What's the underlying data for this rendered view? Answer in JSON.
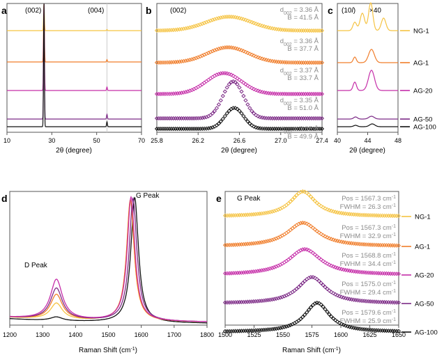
{
  "colors": {
    "NG-1": "#f5c342",
    "AG-1": "#f07d2a",
    "AG-20": "#c52da8",
    "AG-50": "#7c2a86",
    "AG-100": "#111111",
    "annotation": "#8a8a8a",
    "axis": "#333333"
  },
  "samples": [
    "NG-1",
    "AG-1",
    "AG-20",
    "AG-50",
    "AG-100"
  ],
  "chart_data": [
    {
      "panel": "a",
      "type": "line",
      "xlabel": "2θ (degree)",
      "xlim": [
        10,
        70
      ],
      "xticks": [
        "10",
        "30",
        "50",
        "70"
      ],
      "annotations": [
        "(002)",
        "(004)"
      ],
      "series": [
        {
          "name": "NG-1",
          "peaks": [
            {
              "x": 26.5,
              "rel_height": 1.0
            },
            {
              "x": 54.6,
              "rel_height": 0.04
            }
          ]
        },
        {
          "name": "AG-1",
          "peaks": [
            {
              "x": 26.5,
              "rel_height": 1.0
            },
            {
              "x": 54.6,
              "rel_height": 0.04
            }
          ]
        },
        {
          "name": "AG-20",
          "peaks": [
            {
              "x": 26.5,
              "rel_height": 1.0
            },
            {
              "x": 54.6,
              "rel_height": 0.04
            }
          ]
        },
        {
          "name": "AG-50",
          "peaks": [
            {
              "x": 26.5,
              "rel_height": 1.0
            },
            {
              "x": 54.6,
              "rel_height": 0.04
            }
          ]
        },
        {
          "name": "AG-100",
          "peaks": [
            {
              "x": 26.5,
              "rel_height": 1.0
            },
            {
              "x": 54.6,
              "rel_height": 0.04
            }
          ]
        }
      ]
    },
    {
      "panel": "b",
      "type": "scatter",
      "xlabel": "2θ (degree)",
      "xlim": [
        25.8,
        27.4
      ],
      "xticks": [
        "25.8",
        "26.2",
        "26.6",
        "27.0",
        "27.4"
      ],
      "annotations": [
        "(002)"
      ],
      "series": [
        {
          "name": "NG-1",
          "center": 26.5,
          "d_label": "3.36 Å",
          "b_label": "B = 41.5 Å"
        },
        {
          "name": "AG-1",
          "center": 26.49,
          "d_label": "3.36 Å",
          "b_label": "B = 37.7 Å"
        },
        {
          "name": "AG-20",
          "center": 26.45,
          "d_label": "3.37 Å",
          "b_label": "B = 33.7 Å"
        },
        {
          "name": "AG-50",
          "center": 26.54,
          "d_label": "3.35 Å",
          "b_label": "B = 51.0 Å"
        },
        {
          "name": "AG-100",
          "center": 26.55,
          "d_label": "3.35 Å",
          "b_label": "B = 49.9 Å"
        }
      ]
    },
    {
      "panel": "c",
      "type": "line",
      "xlabel": "2θ (degree)",
      "xlim": [
        40,
        48
      ],
      "xticks": [
        "40",
        "44",
        "48"
      ],
      "annotations": [
        "(10",
        "l",
        ")",
        "×40"
      ],
      "series": [
        {
          "name": "NG-1",
          "peaks": [
            42.3,
            43.3,
            44.4,
            46.1
          ]
        },
        {
          "name": "AG-1",
          "peaks": [
            42.3,
            44.5
          ]
        },
        {
          "name": "AG-20",
          "peaks": [
            42.3,
            44.5
          ]
        },
        {
          "name": "AG-50",
          "peaks": [
            42.4,
            44.5
          ]
        },
        {
          "name": "AG-100",
          "peaks": [
            42.4,
            44.6
          ]
        }
      ]
    },
    {
      "panel": "d",
      "type": "line",
      "xlabel": "Raman Shift (cm",
      "xlabel_sup": "-1",
      "xlabel_end": ")",
      "xlim": [
        1200,
        1800
      ],
      "xticks": [
        "1200",
        "1300",
        "1400",
        "1500",
        "1600",
        "1700",
        "1800"
      ],
      "annotations": [
        "D Peak",
        "G Peak"
      ],
      "series": [
        {
          "name": "AG-100",
          "D": 0.03,
          "G": 1.0,
          "G_pos": 1580
        },
        {
          "name": "NG-1",
          "D": 0.13,
          "G": 0.96,
          "G_pos": 1567
        },
        {
          "name": "AG-1",
          "D": 0.2,
          "G": 0.97,
          "G_pos": 1567
        },
        {
          "name": "AG-50",
          "D": 0.25,
          "G": 0.98,
          "G_pos": 1575
        },
        {
          "name": "AG-20",
          "D": 0.32,
          "G": 0.99,
          "G_pos": 1569
        }
      ]
    },
    {
      "panel": "e",
      "type": "scatter",
      "xlabel": "Raman Shift (cm",
      "xlabel_sup": "-1",
      "xlabel_end": ")",
      "xlim": [
        1500,
        1650
      ],
      "xticks": [
        "1500",
        "1525",
        "1550",
        "1575",
        "1600",
        "1625",
        "1650"
      ],
      "annotations": [
        "G Peak"
      ],
      "series": [
        {
          "name": "NG-1",
          "pos": 1567.3,
          "fwhm": 26.3,
          "pos_label": "Pos = 1567.3 cm",
          "fwhm_label": "FWHM = 26.3 cm"
        },
        {
          "name": "AG-1",
          "pos": 1567.3,
          "fwhm": 32.9,
          "pos_label": "Pos = 1567.3 cm",
          "fwhm_label": "FWHM = 32.9 cm"
        },
        {
          "name": "AG-20",
          "pos": 1568.8,
          "fwhm": 34.4,
          "pos_label": "Pos = 1568.8 cm",
          "fwhm_label": "FWHM = 34.4 cm"
        },
        {
          "name": "AG-50",
          "pos": 1575.0,
          "fwhm": 29.4,
          "pos_label": "Pos = 1575.0 cm",
          "fwhm_label": "FWHM = 29.4 cm"
        },
        {
          "name": "AG-100",
          "pos": 1579.6,
          "fwhm": 25.9,
          "pos_label": "Pos = 1579.6 cm",
          "fwhm_label": "FWHM = 25.9 cm"
        }
      ]
    }
  ],
  "labels": {
    "panel_a": "a",
    "panel_b": "b",
    "panel_c": "c",
    "panel_d": "d",
    "panel_e": "e",
    "d_prefix": "d",
    "d_sub": "002",
    "d_eq": " = ",
    "unit_sup": "-1"
  }
}
